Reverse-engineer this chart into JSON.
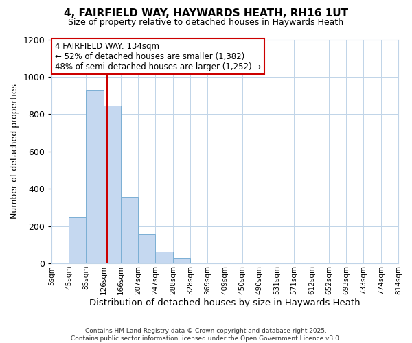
{
  "title": "4, FAIRFIELD WAY, HAYWARDS HEATH, RH16 1UT",
  "subtitle": "Size of property relative to detached houses in Haywards Heath",
  "xlabel": "Distribution of detached houses by size in Haywards Heath",
  "ylabel": "Number of detached properties",
  "bin_edges": [
    5,
    45,
    85,
    126,
    166,
    207,
    247,
    288,
    328,
    369,
    409,
    450,
    490,
    531,
    571,
    612,
    652,
    693,
    733,
    774,
    814
  ],
  "bar_heights": [
    0,
    248,
    930,
    845,
    358,
    158,
    63,
    28,
    5,
    0,
    0,
    0,
    0,
    0,
    0,
    0,
    0,
    0,
    0,
    0
  ],
  "bar_color": "#c5d8f0",
  "bar_edgecolor": "#7bafd4",
  "vline_x": 134,
  "vline_color": "#cc0000",
  "ylim": [
    0,
    1200
  ],
  "yticks": [
    0,
    200,
    400,
    600,
    800,
    1000,
    1200
  ],
  "tick_labels": [
    "5sqm",
    "45sqm",
    "85sqm",
    "126sqm",
    "166sqm",
    "207sqm",
    "247sqm",
    "288sqm",
    "328sqm",
    "369sqm",
    "409sqm",
    "450sqm",
    "490sqm",
    "531sqm",
    "571sqm",
    "612sqm",
    "652sqm",
    "693sqm",
    "733sqm",
    "774sqm",
    "814sqm"
  ],
  "annotation_title": "4 FAIRFIELD WAY: 134sqm",
  "annotation_line1": "← 52% of detached houses are smaller (1,382)",
  "annotation_line2": "48% of semi-detached houses are larger (1,252) →",
  "annotation_box_facecolor": "#ffffff",
  "annotation_box_edgecolor": "#cc0000",
  "footer_line1": "Contains HM Land Registry data © Crown copyright and database right 2025.",
  "footer_line2": "Contains public sector information licensed under the Open Government Licence v3.0.",
  "background_color": "#ffffff",
  "grid_color": "#c0d4e8",
  "title_fontsize": 11,
  "subtitle_fontsize": 9
}
